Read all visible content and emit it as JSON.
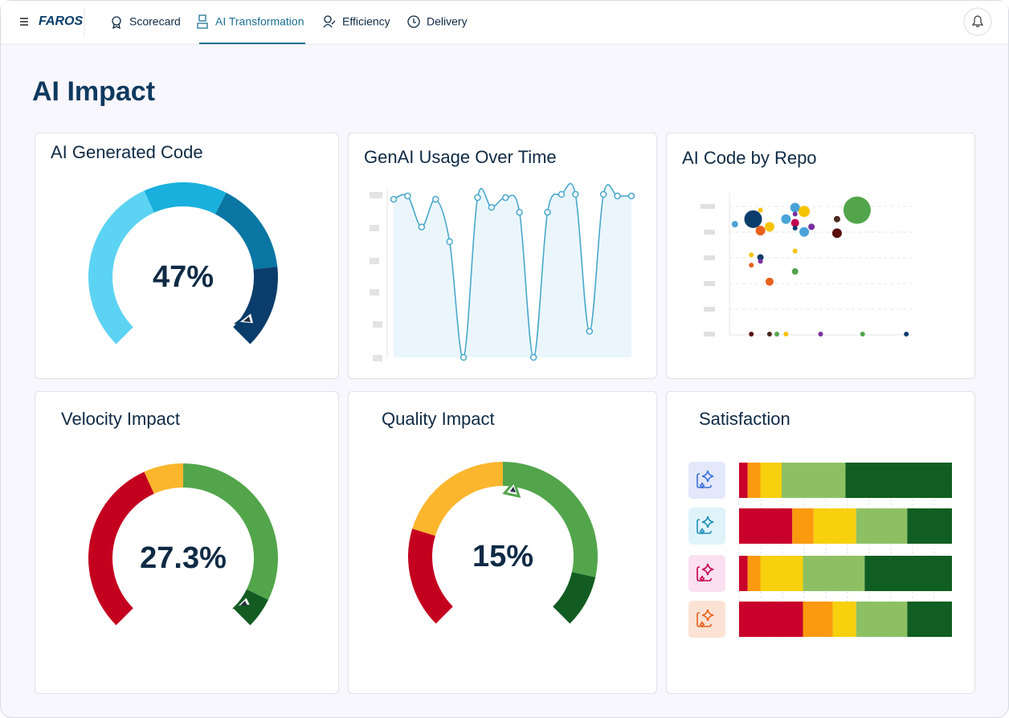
{
  "nav": {
    "logo": "FAROS",
    "items": [
      "Scorecard",
      "AI Transformation",
      "Efficiency",
      "Delivery"
    ],
    "active": 1
  },
  "page_title": "AI Impact",
  "cards": [
    {
      "title": "AI Generated Code",
      "chart_data": {
        "type": "gauge",
        "value_label": "47%",
        "bands": [
          41,
          19,
          21,
          19
        ],
        "colors": [
          "#5dd3f3",
          "#1ab0dd",
          "#0a76a3",
          "#0a3d6b"
        ]
      }
    },
    {
      "title": "GenAI Usage Over Time",
      "chart_data": {
        "type": "line",
        "values": [
          97,
          99,
          80,
          97,
          71,
          0,
          98,
          92,
          98,
          89,
          0,
          89,
          100,
          100,
          16,
          100,
          99,
          99
        ],
        "ylim": [
          0,
          100
        ],
        "color": "#4aa8cc"
      }
    },
    {
      "title": "AI Code by Repo",
      "chart_data": {
        "type": "scatter",
        "xlim": [
          0,
          100
        ],
        "ylim": [
          0,
          110
        ],
        "x": [
          3,
          13,
          17,
          17,
          22,
          31,
          36,
          41,
          36,
          36,
          36,
          41,
          45,
          59,
          59,
          70,
          12,
          17,
          17,
          12,
          36,
          36,
          22,
          12,
          22,
          26,
          31,
          50,
          73,
          97
        ],
        "values": [
          86,
          90,
          97,
          81,
          84,
          90,
          99,
          96,
          94,
          87,
          83,
          80,
          84,
          90,
          79,
          97,
          62,
          60,
          57,
          54,
          65,
          49,
          41,
          0,
          0,
          0,
          0,
          0,
          0,
          0
        ],
        "sizes": [
          4,
          11,
          3,
          6,
          6,
          6,
          6,
          7,
          3,
          5,
          3,
          6,
          4,
          4,
          6,
          17,
          3,
          4,
          3,
          3,
          3,
          4,
          5,
          3,
          3,
          3,
          3,
          3,
          3,
          3
        ],
        "colors": [
          "#4aa3d8",
          "#0a3d6b",
          "#f5c400",
          "#e8601c",
          "#f5c400",
          "#4aa3d8",
          "#4aa3d8",
          "#f5c400",
          "#7b2fa0",
          "#c4004f",
          "#0a3d6b",
          "#4aa3d8",
          "#7b2fa0",
          "#4a2a20",
          "#5a0e0e",
          "#52a54b",
          "#f5c400",
          "#0a3d6b",
          "#7b2fa0",
          "#e8601c",
          "#f5c400",
          "#52a54b",
          "#e8601c",
          "#5a0e0e",
          "#4a2a20",
          "#52a54b",
          "#f5c400",
          "#7b2fa0",
          "#52a54b",
          "#0a3d6b"
        ]
      }
    },
    {
      "title": "Velocity Impact",
      "chart_data": {
        "type": "gauge",
        "value_label": "27.3%",
        "bands": [
          41,
          9,
          43,
          7
        ],
        "colors": [
          "#c4001f",
          "#fbb62d",
          "#52a54b",
          "#125c22"
        ]
      }
    },
    {
      "title": "Quality Impact",
      "chart_data": {
        "type": "gauge",
        "value_label": "15%",
        "bands": [
          23,
          27,
          38,
          12
        ],
        "colors": [
          "#c4001f",
          "#fbb62d",
          "#52a54b",
          "#125c22"
        ]
      }
    },
    {
      "title": "Satisfaction",
      "chart_data": {
        "type": "stacked-bar",
        "xlim": [
          0,
          100
        ],
        "series": [
          {
            "color": "#c9002b",
            "values": [
              4,
              25,
              4,
              30
            ]
          },
          {
            "color": "#fb9a0e",
            "values": [
              6,
              10,
              6,
              14
            ]
          },
          {
            "color": "#f7d00e",
            "values": [
              10,
              20,
              20,
              11
            ]
          },
          {
            "color": "#8dc063",
            "values": [
              30,
              24,
              29,
              24
            ]
          },
          {
            "color": "#105e22",
            "values": [
              50,
              21,
              41,
              21
            ]
          }
        ]
      }
    }
  ]
}
